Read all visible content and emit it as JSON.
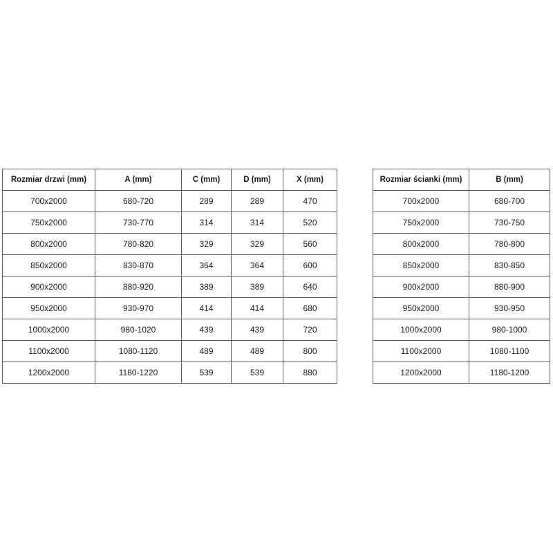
{
  "page": {
    "background_color": "#ffffff",
    "border_color": "#595959",
    "text_color": "#1a1a1a"
  },
  "door_table": {
    "headers": [
      "Rozmiar drzwi (mm)",
      "A (mm)",
      "C (mm)",
      "D (mm)",
      "X (mm)"
    ],
    "rows": [
      [
        "700x2000",
        "680-720",
        "289",
        "289",
        "470"
      ],
      [
        "750x2000",
        "730-770",
        "314",
        "314",
        "520"
      ],
      [
        "800x2000",
        "780-820",
        "329",
        "329",
        "560"
      ],
      [
        "850x2000",
        "830-870",
        "364",
        "364",
        "600"
      ],
      [
        "900x2000",
        "880-920",
        "389",
        "389",
        "640"
      ],
      [
        "950x2000",
        "930-970",
        "414",
        "414",
        "680"
      ],
      [
        "1000x2000",
        "980-1020",
        "439",
        "439",
        "720"
      ],
      [
        "1100x2000",
        "1080-1120",
        "489",
        "489",
        "800"
      ],
      [
        "1200x2000",
        "1180-1220",
        "539",
        "539",
        "880"
      ]
    ]
  },
  "wall_table": {
    "headers": [
      "Rozmiar ścianki (mm)",
      "B (mm)"
    ],
    "rows": [
      [
        "700x2000",
        "680-700"
      ],
      [
        "750x2000",
        "730-750"
      ],
      [
        "800x2000",
        "780-800"
      ],
      [
        "850x2000",
        "830-850"
      ],
      [
        "900x2000",
        "880-900"
      ],
      [
        "950x2000",
        "930-950"
      ],
      [
        "1000x2000",
        "980-1000"
      ],
      [
        "1100x2000",
        "1080-1100"
      ],
      [
        "1200x2000",
        "1180-1200"
      ]
    ]
  }
}
